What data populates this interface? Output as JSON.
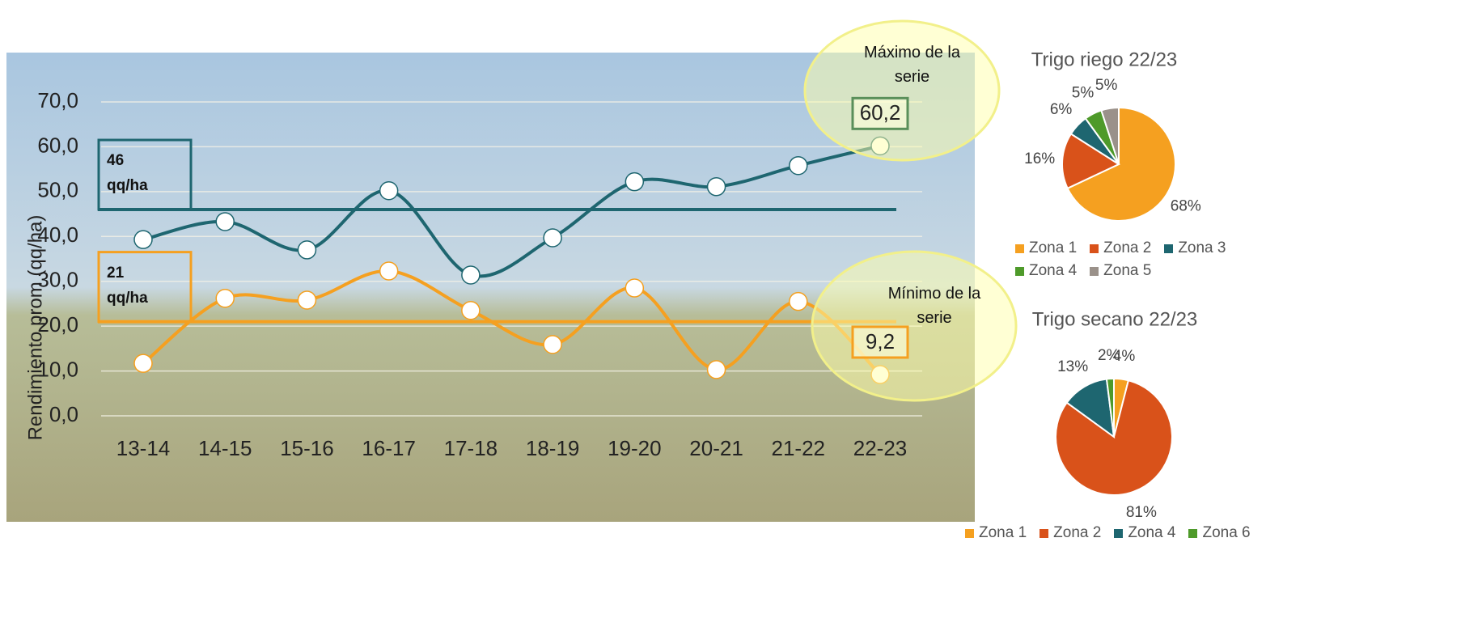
{
  "chart_data": [
    {
      "type": "line",
      "y_axis_label": "Rendimiento prom (qq/ha)",
      "categories": [
        "13-14",
        "14-15",
        "15-16",
        "16-17",
        "17-18",
        "18-19",
        "19-20",
        "20-21",
        "21-22",
        "22-23"
      ],
      "ylim": [
        0,
        70
      ],
      "yticks": [
        {
          "value": 0,
          "label": "0,0"
        },
        {
          "value": 10,
          "label": "10,0"
        },
        {
          "value": 20,
          "label": "20,0"
        },
        {
          "value": 30,
          "label": "30,0"
        },
        {
          "value": 40,
          "label": "40,0"
        },
        {
          "value": 50,
          "label": "50,0"
        },
        {
          "value": 60,
          "label": "60,0"
        },
        {
          "value": 70,
          "label": "70,0"
        }
      ],
      "grid": true,
      "series": [
        {
          "color": "#1e6670",
          "values": [
            39.3,
            43.3,
            37.0,
            50.2,
            31.4,
            39.7,
            52.2,
            51.1,
            55.8,
            60.2
          ],
          "value_labels": [
            null,
            null,
            null,
            null,
            null,
            null,
            null,
            null,
            null,
            "60,2"
          ],
          "label_border": "#5a8f5a"
        },
        {
          "color": "#f5a020",
          "values": [
            11.7,
            26.2,
            25.8,
            32.3,
            23.5,
            15.9,
            28.5,
            10.3,
            25.5,
            9.2
          ],
          "value_labels": [
            null,
            null,
            null,
            null,
            null,
            null,
            null,
            null,
            null,
            "9,2"
          ],
          "label_border": "#f5a020"
        }
      ],
      "reference_lines": [
        {
          "value": 46,
          "label": "46 qq/ha",
          "color": "#1e6670"
        },
        {
          "value": 21,
          "label": "21 qq/ha",
          "color": "#f5a020"
        }
      ],
      "annotations": [
        "Máximo de la serie",
        "Mínimo de la serie"
      ]
    },
    {
      "type": "pie",
      "title": "Trigo riego 22/23",
      "categories": [
        "Zona 1",
        "Zona 2",
        "Zona 3",
        "Zona 4",
        "Zona 5"
      ],
      "values": [
        68,
        16,
        6,
        5,
        5
      ],
      "value_labels": [
        "68%",
        "16%",
        "6%",
        "5%",
        "5%"
      ],
      "colors": [
        "#f5a020",
        "#d9521a",
        "#1e6670",
        "#4e9a2a",
        "#9a918a"
      ]
    },
    {
      "type": "pie",
      "title": "Trigo secano 22/23",
      "categories": [
        "Zona 1",
        "Zona 2",
        "Zona 4",
        "Zona 6"
      ],
      "values": [
        4,
        81,
        13,
        2
      ],
      "value_labels": [
        "4%",
        "81%",
        "13%",
        "2%"
      ],
      "colors": [
        "#f5a020",
        "#d9521a",
        "#1e6670",
        "#4e9a2a"
      ]
    }
  ]
}
